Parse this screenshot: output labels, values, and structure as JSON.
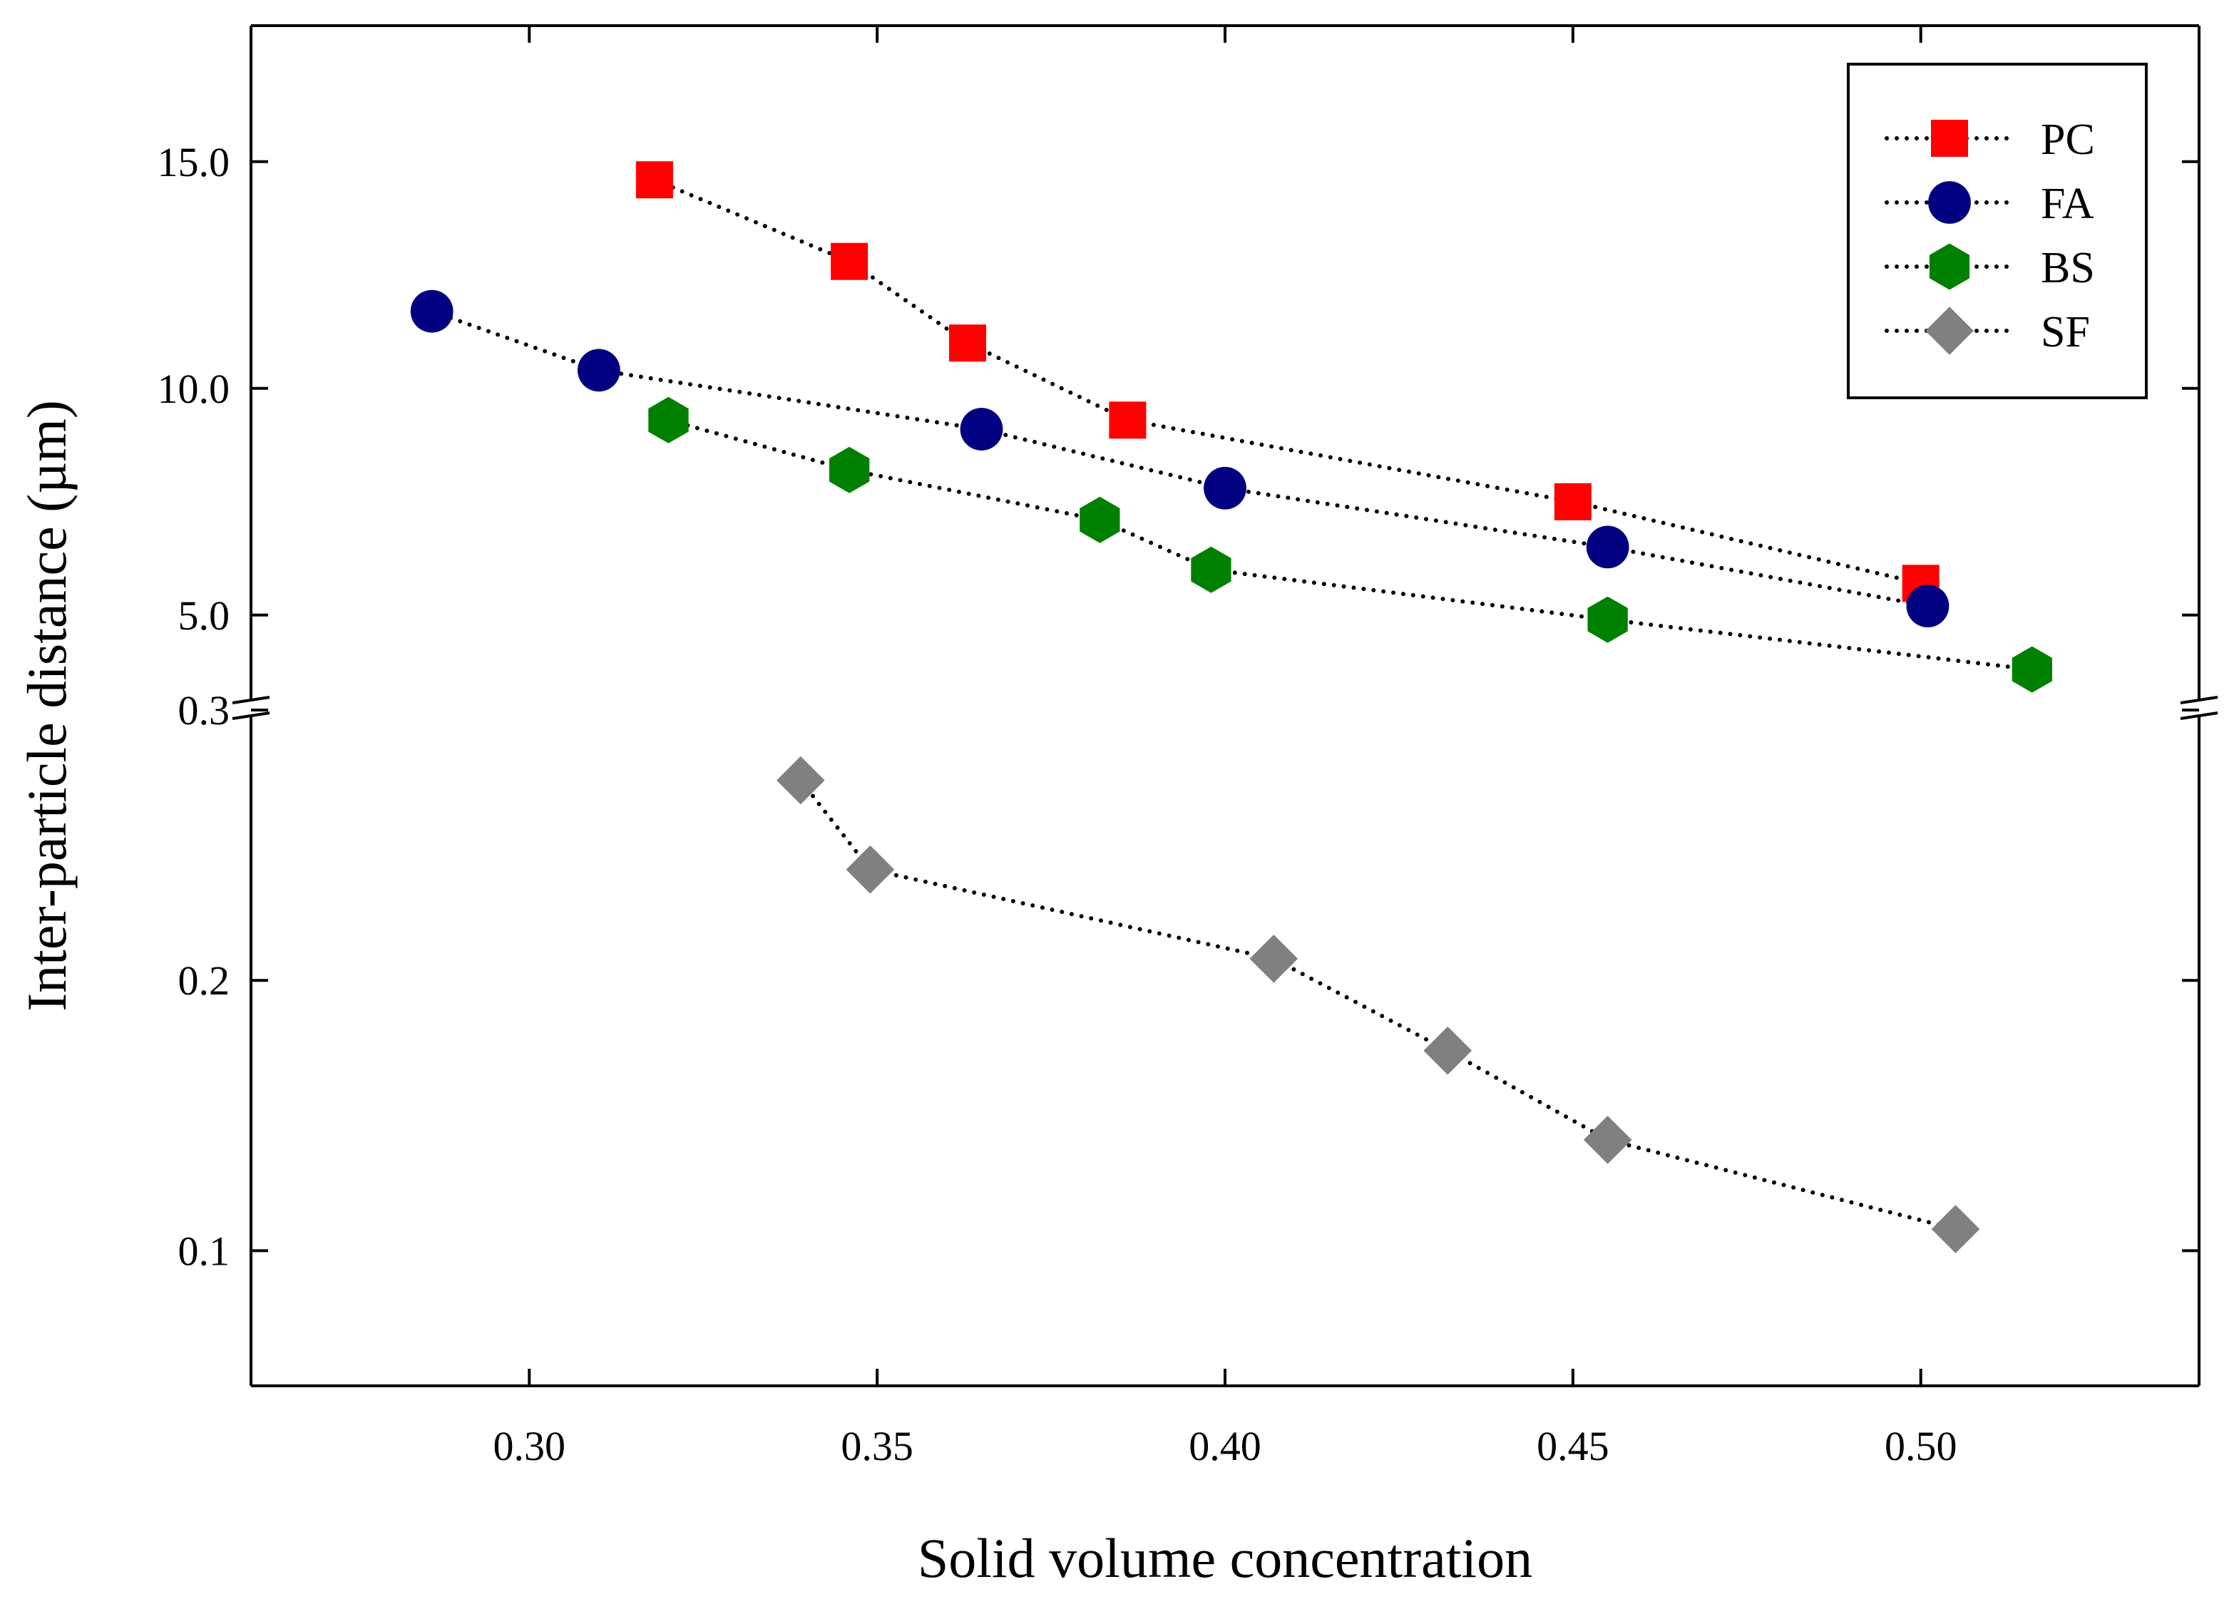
{
  "chart_data": {
    "type": "scatter",
    "title": "",
    "xlabel": "Solid volume concentration",
    "ylabel": "Inter-particle distance (µm)",
    "xlim": [
      0.26,
      0.54
    ],
    "x_ticks": [
      0.3,
      0.35,
      0.4,
      0.45,
      0.5
    ],
    "x_tick_labels": [
      "0.30",
      "0.35",
      "0.40",
      "0.45",
      "0.50"
    ],
    "y_broken": true,
    "y_upper": {
      "range": [
        3.0,
        18.0
      ],
      "ticks": [
        5.0,
        10.0,
        15.0
      ],
      "tick_labels": [
        "5.0",
        "10.0",
        "15.0"
      ]
    },
    "y_lower": {
      "range": [
        0.05,
        0.3
      ],
      "ticks": [
        0.1,
        0.2,
        0.3
      ],
      "tick_labels": [
        "0.1",
        "0.2",
        "0.3"
      ]
    },
    "grid": false,
    "legend_position": "top-right",
    "series": [
      {
        "name": "PC",
        "marker": "square",
        "color": "#ff0000",
        "panel": "upper",
        "x": [
          0.318,
          0.346,
          0.363,
          0.386,
          0.45,
          0.5
        ],
        "y": [
          14.6,
          12.8,
          11.0,
          9.3,
          7.5,
          5.7
        ]
      },
      {
        "name": "FA",
        "marker": "circle",
        "color": "#000080",
        "panel": "upper",
        "x": [
          0.286,
          0.31,
          0.365,
          0.4,
          0.455,
          0.501
        ],
        "y": [
          11.7,
          10.4,
          9.1,
          7.8,
          6.5,
          5.2
        ]
      },
      {
        "name": "BS",
        "marker": "hexagon",
        "color": "#008000",
        "panel": "upper",
        "x": [
          0.32,
          0.346,
          0.382,
          0.398,
          0.455,
          0.516
        ],
        "y": [
          9.3,
          8.2,
          7.1,
          6.0,
          4.9,
          3.8
        ]
      },
      {
        "name": "SF",
        "marker": "diamond",
        "color": "#808080",
        "panel": "lower",
        "x": [
          0.339,
          0.349,
          0.407,
          0.432,
          0.455,
          0.505
        ],
        "y": [
          0.274,
          0.241,
          0.208,
          0.174,
          0.141,
          0.108
        ]
      }
    ]
  }
}
